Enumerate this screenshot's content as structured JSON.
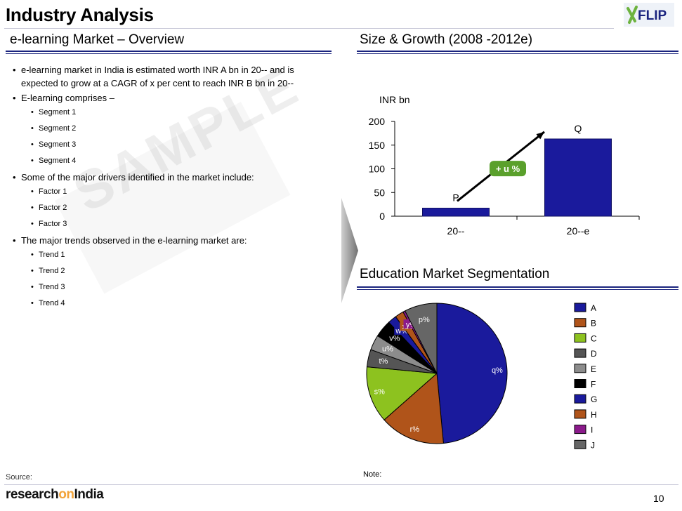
{
  "header": {
    "title": "Industry Analysis",
    "logo_text": "FLIP"
  },
  "left": {
    "heading": "e-learning Market – Overview",
    "bullets": [
      {
        "text": "e-learning market in India  is estimated worth INR A bn in 20-- and is expected to grow at  a CAGR of x per cent to reach INR B bn in 20--",
        "sub": []
      },
      {
        "text": "E-learning comprises –",
        "sub": [
          "Segment 1",
          "Segment 2",
          "Segment 3",
          "Segment 4"
        ]
      },
      {
        "text": "Some of the major drivers identified in the market include:",
        "sub": [
          "Factor 1",
          "Factor 2",
          "Factor 3"
        ]
      },
      {
        "text": "The major trends observed in the e-learning market are:",
        "sub": [
          "Trend 1",
          "Trend 2",
          "Trend 3",
          "Trend 4"
        ]
      }
    ],
    "watermark": "SAMPLE",
    "source_label": "Source:"
  },
  "right": {
    "heading": "Size & Growth (2008 -2012e)",
    "pie_heading": "Education Market Segmentation",
    "note_label": "Note:"
  },
  "footer": {
    "logo_part1": "research",
    "logo_part2": "on",
    "logo_part3": "India",
    "page_number": "10"
  },
  "chart_data": [
    {
      "type": "bar",
      "ylabel": "INR bn",
      "categories": [
        "20--",
        "20--e"
      ],
      "values": [
        17,
        163
      ],
      "data_labels": [
        "P",
        "Q"
      ],
      "ylim": [
        0,
        200
      ],
      "yticks": [
        0,
        50,
        100,
        150,
        200
      ],
      "growth_annotation": "+ u %",
      "bar_color": "#1a1a9c",
      "annotation_color": "#5aa02c"
    },
    {
      "type": "pie",
      "slices": [
        {
          "legend": "A",
          "label": "q%",
          "value": 48.5,
          "color": "#1a1a9c"
        },
        {
          "legend": "B",
          "label": "r%",
          "value": 15,
          "color": "#b0541a"
        },
        {
          "legend": "C",
          "label": "s%",
          "value": 13,
          "color": "#8dc21f"
        },
        {
          "legend": "D",
          "label": "t%",
          "value": 4,
          "color": "#555555"
        },
        {
          "legend": "E",
          "label": "u%",
          "value": 3.5,
          "color": "#8c8c8c"
        },
        {
          "legend": "F",
          "label": "v%",
          "value": 4,
          "color": "#000000"
        },
        {
          "legend": "G",
          "label": "w%",
          "value": 2,
          "color": "#1a1a9c"
        },
        {
          "legend": "H",
          "label": "x%",
          "value": 2,
          "color": "#b0541a"
        },
        {
          "legend": "I",
          "label": "y%",
          "value": 0.5,
          "color": "#8b1a8b"
        },
        {
          "legend": "J",
          "label": "p%",
          "value": 7.5,
          "color": "#666666"
        }
      ],
      "legend_position": "right"
    }
  ]
}
